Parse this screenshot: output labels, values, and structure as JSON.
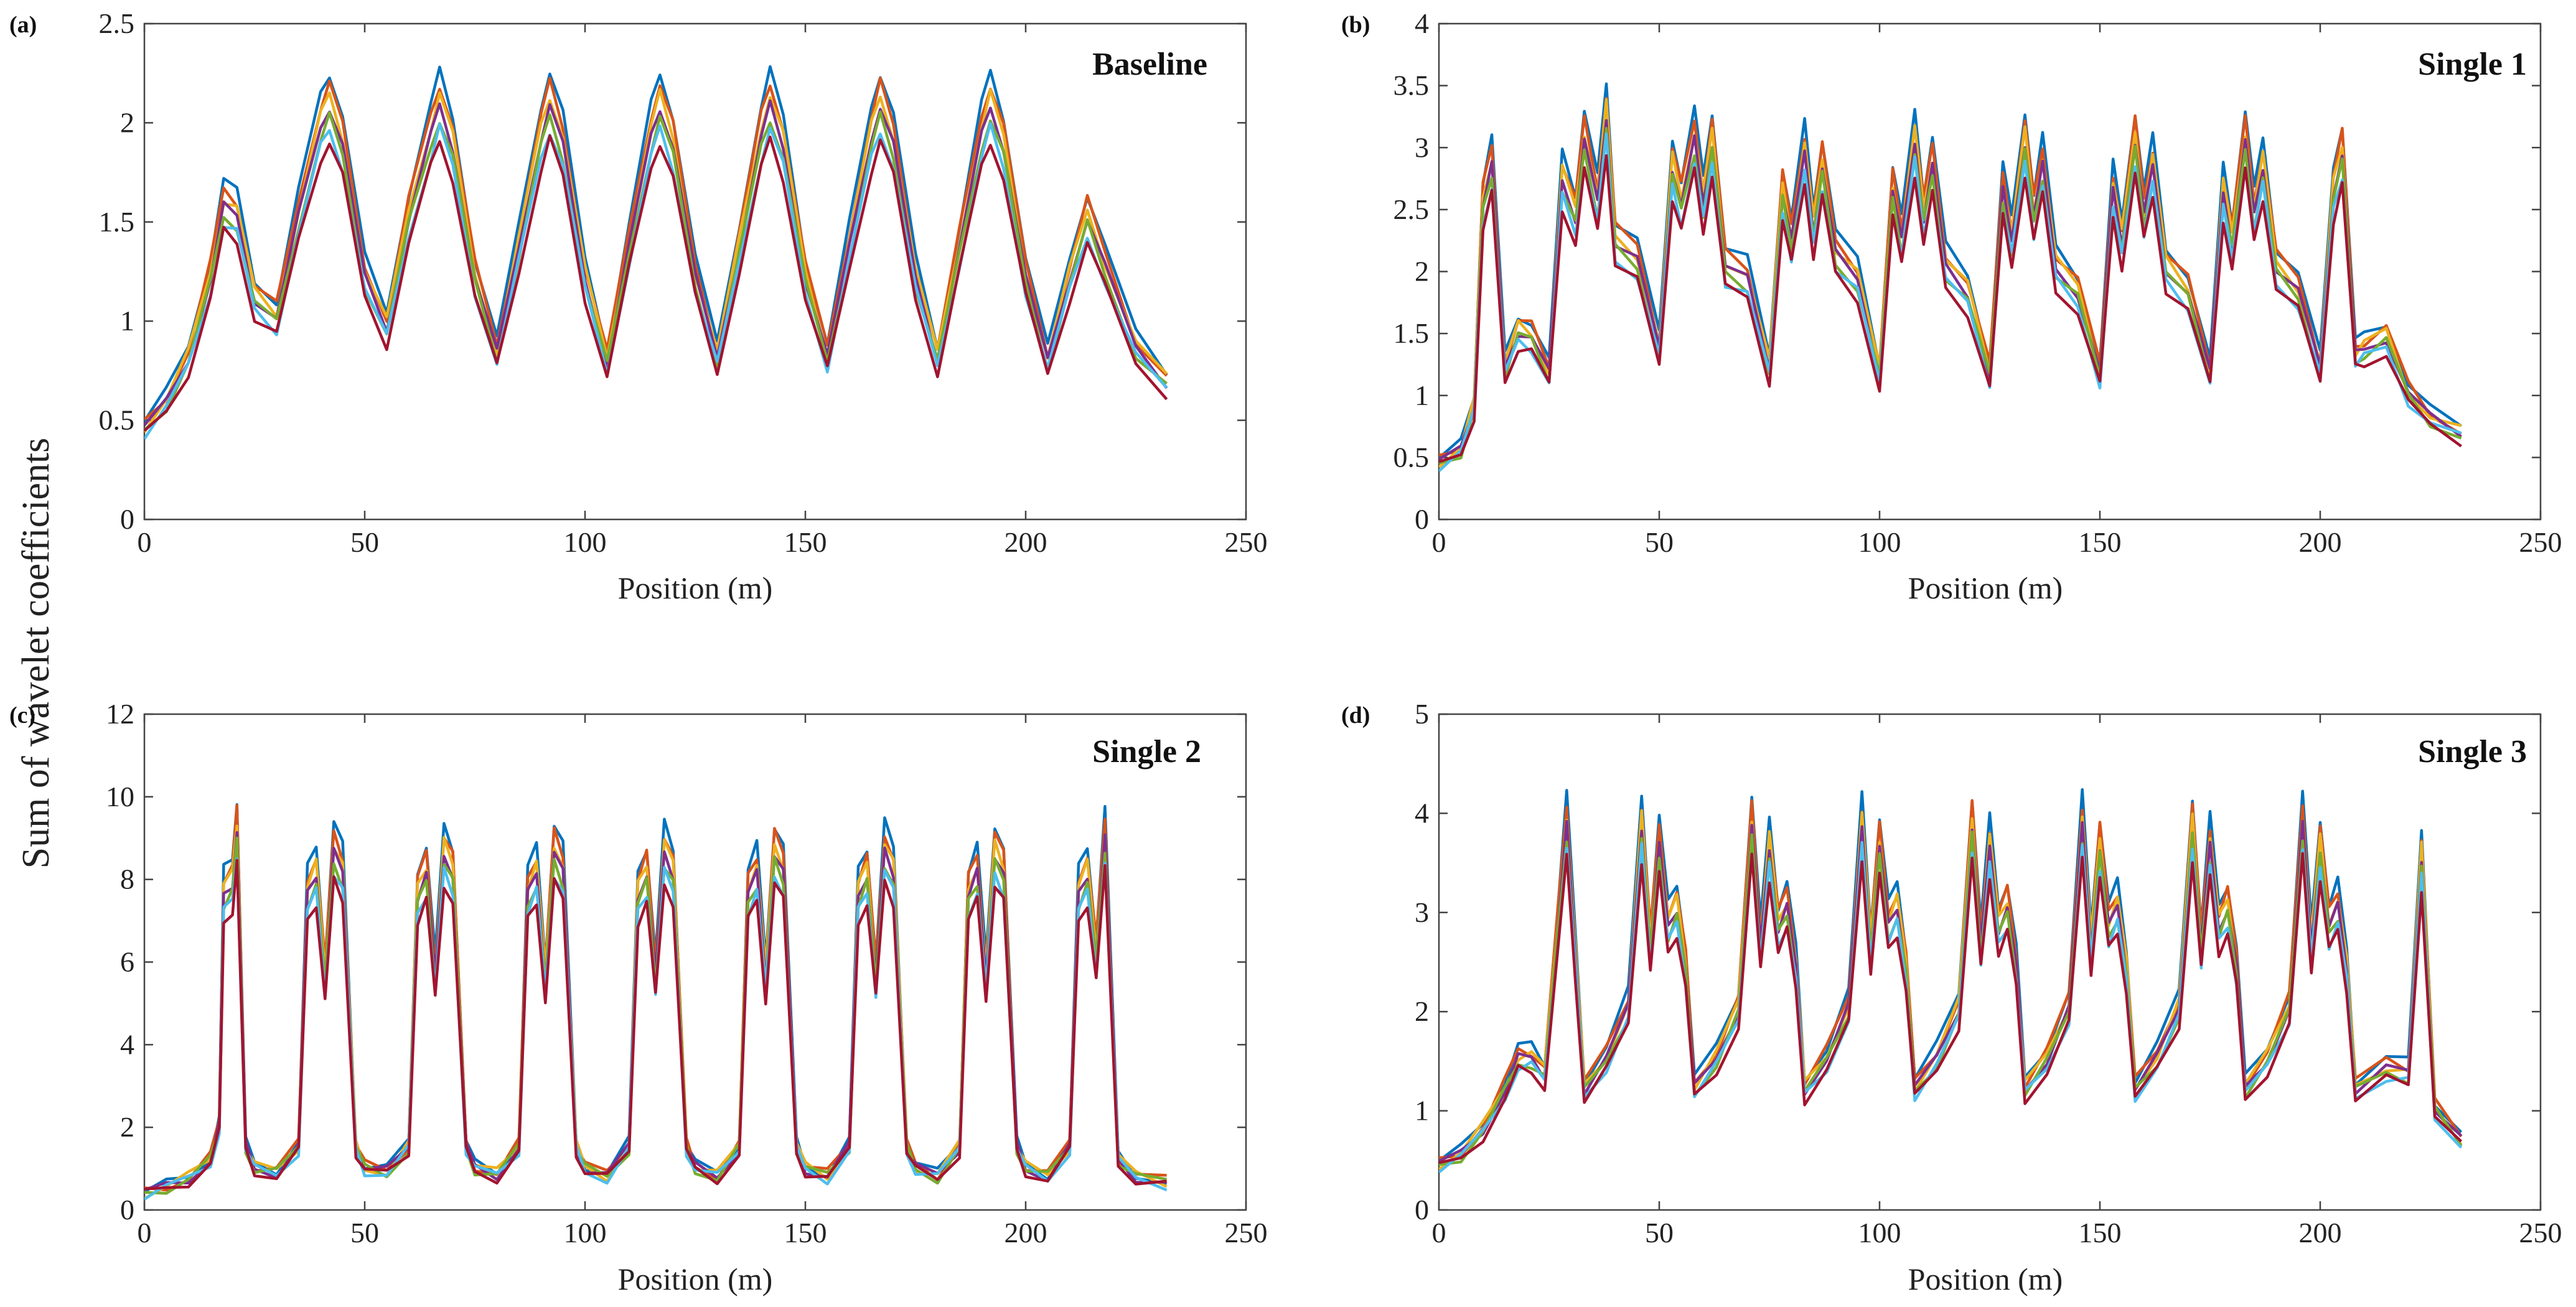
{
  "figure": {
    "ylabel": "Sum of wavelet coefficients",
    "series_palette": [
      "#0072BD",
      "#D95319",
      "#EDB120",
      "#7E2F8E",
      "#77AC30",
      "#4DBEEE",
      "#A2142F"
    ]
  },
  "chart_data": [
    {
      "type": "line",
      "tag": "(a)",
      "title": "Baseline",
      "xlabel": "Position (m)",
      "ylabel": "Sum of wavelet coefficients",
      "xlim": [
        0,
        250
      ],
      "ylim": [
        0,
        2.5
      ],
      "xticks": [
        0,
        50,
        100,
        150,
        200,
        250
      ],
      "xtick_labels": [
        "0",
        "50",
        "100",
        "150",
        "200",
        "250"
      ],
      "yticks": [
        0,
        0.5,
        1,
        1.5,
        2,
        2.5
      ],
      "ytick_labels": [
        "0",
        "0.5",
        "1",
        "1.5",
        "2",
        "2.5"
      ],
      "grid": false,
      "series_count": 7,
      "x": [
        0,
        5,
        10,
        15,
        18,
        21,
        25,
        30,
        35,
        40,
        42,
        45,
        50,
        55,
        60,
        65,
        67,
        70,
        75,
        80,
        85,
        90,
        92,
        95,
        100,
        105,
        110,
        115,
        117,
        120,
        125,
        130,
        135,
        140,
        142,
        145,
        150,
        155,
        160,
        165,
        167,
        170,
        175,
        180,
        185,
        190,
        192,
        195,
        200,
        205,
        210,
        214,
        218,
        225,
        232
      ],
      "y": [
        0.45,
        0.58,
        0.8,
        1.2,
        1.55,
        1.5,
        1.1,
        1.0,
        1.5,
        1.95,
        2.05,
        1.85,
        1.2,
        0.95,
        1.5,
        1.9,
        2.05,
        1.85,
        1.2,
        0.82,
        1.35,
        1.9,
        2.05,
        1.85,
        1.2,
        0.78,
        1.35,
        1.9,
        2.05,
        1.85,
        1.2,
        0.8,
        1.35,
        1.9,
        2.05,
        1.85,
        1.2,
        0.8,
        1.35,
        1.9,
        2.05,
        1.85,
        1.2,
        0.8,
        1.35,
        1.9,
        2.05,
        1.85,
        1.2,
        0.78,
        1.2,
        1.5,
        1.25,
        0.85,
        0.68
      ]
    },
    {
      "type": "line",
      "tag": "(b)",
      "title": "Single 1",
      "xlabel": "Position (m)",
      "ylabel": "Sum of wavelet coefficients",
      "xlim": [
        0,
        250
      ],
      "ylim": [
        0,
        4
      ],
      "xticks": [
        0,
        50,
        100,
        150,
        200,
        250
      ],
      "xtick_labels": [
        "0",
        "50",
        "100",
        "150",
        "200",
        "250"
      ],
      "yticks": [
        0,
        0.5,
        1,
        1.5,
        2,
        2.5,
        3,
        3.5,
        4
      ],
      "ytick_labels": [
        "0",
        "0.5",
        "1",
        "1.5",
        "2",
        "2.5",
        "3",
        "3.5",
        "4"
      ],
      "grid": false,
      "series_count": 7,
      "x": [
        0,
        5,
        8,
        10,
        12,
        15,
        18,
        21,
        25,
        28,
        31,
        33,
        36,
        38,
        40,
        45,
        50,
        53,
        55,
        58,
        60,
        62,
        65,
        70,
        75,
        78,
        80,
        83,
        85,
        87,
        90,
        95,
        100,
        103,
        105,
        108,
        110,
        112,
        115,
        120,
        125,
        128,
        130,
        133,
        135,
        137,
        140,
        145,
        150,
        153,
        155,
        158,
        160,
        162,
        165,
        170,
        175,
        178,
        180,
        183,
        185,
        187,
        190,
        195,
        200,
        203,
        205,
        208,
        210,
        215,
        220,
        225,
        232
      ],
      "y": [
        0.45,
        0.55,
        0.9,
        2.5,
        2.8,
        1.2,
        1.5,
        1.45,
        1.15,
        2.7,
        2.4,
        3.0,
        2.5,
        3.2,
        2.2,
        2.05,
        1.35,
        2.8,
        2.5,
        3.0,
        2.5,
        3.0,
        2.0,
        1.9,
        1.2,
        2.6,
        2.2,
        2.9,
        2.3,
        2.8,
        2.1,
        1.9,
        1.15,
        2.6,
        2.2,
        3.0,
        2.4,
        2.8,
        2.0,
        1.8,
        1.15,
        2.6,
        2.2,
        3.0,
        2.4,
        2.8,
        2.0,
        1.8,
        1.15,
        2.6,
        2.2,
        3.0,
        2.4,
        2.8,
        2.0,
        1.8,
        1.15,
        2.6,
        2.2,
        3.0,
        2.4,
        2.8,
        2.0,
        1.8,
        1.2,
        2.6,
        2.9,
        1.3,
        1.35,
        1.45,
        1.0,
        0.8,
        0.68
      ]
    },
    {
      "type": "line",
      "tag": "(c)",
      "title": "Single 2",
      "xlabel": "Position (m)",
      "ylabel": "Sum of wavelet coefficients",
      "xlim": [
        0,
        250
      ],
      "ylim": [
        0,
        12
      ],
      "xticks": [
        0,
        50,
        100,
        150,
        200,
        250
      ],
      "xtick_labels": [
        "0",
        "50",
        "100",
        "150",
        "200",
        "250"
      ],
      "yticks": [
        0,
        2,
        4,
        6,
        8,
        10,
        12
      ],
      "ytick_labels": [
        "0",
        "2",
        "4",
        "6",
        "8",
        "10",
        "12"
      ],
      "grid": false,
      "series_count": 7,
      "x": [
        0,
        5,
        10,
        15,
        17,
        18,
        20,
        21,
        23,
        25,
        30,
        35,
        37,
        39,
        41,
        43,
        45,
        48,
        50,
        55,
        60,
        62,
        64,
        66,
        68,
        70,
        73,
        75,
        80,
        85,
        87,
        89,
        91,
        93,
        95,
        98,
        100,
        105,
        110,
        112,
        114,
        116,
        118,
        120,
        123,
        125,
        130,
        135,
        137,
        139,
        141,
        143,
        145,
        148,
        150,
        155,
        160,
        162,
        164,
        166,
        168,
        170,
        173,
        175,
        180,
        185,
        187,
        189,
        191,
        193,
        195,
        198,
        200,
        205,
        210,
        212,
        214,
        216,
        218,
        221,
        225,
        232
      ],
      "y": [
        0.4,
        0.55,
        0.75,
        1.2,
        2.0,
        7.5,
        7.8,
        9.0,
        1.5,
        1.0,
        0.9,
        1.5,
        7.5,
        8.0,
        5.5,
        8.5,
        8.0,
        1.5,
        1.0,
        0.9,
        1.5,
        7.5,
        8.0,
        5.5,
        8.5,
        8.0,
        1.5,
        1.0,
        0.85,
        1.5,
        7.5,
        8.0,
        5.5,
        8.5,
        8.0,
        1.5,
        1.0,
        0.8,
        1.5,
        7.5,
        8.0,
        5.5,
        8.5,
        8.0,
        1.5,
        1.0,
        0.8,
        1.5,
        7.5,
        8.0,
        5.5,
        8.5,
        8.0,
        1.5,
        1.0,
        0.8,
        1.5,
        7.5,
        8.0,
        5.5,
        8.5,
        8.0,
        1.5,
        1.0,
        0.8,
        1.5,
        7.5,
        8.0,
        5.5,
        8.5,
        8.0,
        1.5,
        1.0,
        0.8,
        1.5,
        7.5,
        8.0,
        6.0,
        8.8,
        1.2,
        0.8,
        0.65
      ]
    },
    {
      "type": "line",
      "tag": "(d)",
      "title": "Single 3",
      "xlabel": "Position (m)",
      "ylabel": "Sum of wavelet coefficients",
      "xlim": [
        0,
        250
      ],
      "ylim": [
        0,
        5
      ],
      "xticks": [
        0,
        50,
        100,
        150,
        200,
        250
      ],
      "xtick_labels": [
        "0",
        "50",
        "100",
        "150",
        "200",
        "250"
      ],
      "yticks": [
        0,
        1,
        2,
        3,
        4,
        5
      ],
      "ytick_labels": [
        "0",
        "1",
        "2",
        "3",
        "4",
        "5"
      ],
      "grid": false,
      "series_count": 7,
      "x": [
        0,
        5,
        10,
        15,
        18,
        21,
        24,
        27,
        29,
        31,
        33,
        38,
        43,
        46,
        48,
        50,
        52,
        54,
        56,
        58,
        63,
        68,
        71,
        73,
        75,
        77,
        79,
        81,
        83,
        88,
        93,
        96,
        98,
        100,
        102,
        104,
        106,
        108,
        113,
        118,
        121,
        123,
        125,
        127,
        129,
        131,
        133,
        138,
        143,
        146,
        148,
        150,
        152,
        154,
        156,
        158,
        163,
        168,
        171,
        173,
        175,
        177,
        179,
        181,
        183,
        188,
        193,
        196,
        198,
        200,
        202,
        204,
        206,
        208,
        215,
        220,
        223,
        226,
        232
      ],
      "y": [
        0.45,
        0.55,
        0.8,
        1.2,
        1.5,
        1.5,
        1.35,
        2.8,
        3.8,
        2.5,
        1.2,
        1.5,
        2.0,
        3.8,
        2.6,
        3.6,
        2.8,
        3.0,
        2.4,
        1.2,
        1.5,
        2.0,
        3.8,
        2.6,
        3.6,
        2.8,
        3.0,
        2.4,
        1.2,
        1.5,
        2.0,
        3.8,
        2.6,
        3.6,
        2.8,
        3.0,
        2.4,
        1.2,
        1.5,
        2.0,
        3.8,
        2.6,
        3.6,
        2.8,
        3.0,
        2.4,
        1.2,
        1.5,
        2.0,
        3.8,
        2.6,
        3.6,
        2.8,
        3.0,
        2.4,
        1.2,
        1.5,
        2.0,
        3.8,
        2.6,
        3.6,
        2.8,
        3.0,
        2.4,
        1.2,
        1.5,
        2.0,
        3.8,
        2.6,
        3.6,
        2.8,
        3.0,
        2.4,
        1.2,
        1.4,
        1.35,
        3.5,
        1.0,
        0.68
      ]
    }
  ]
}
